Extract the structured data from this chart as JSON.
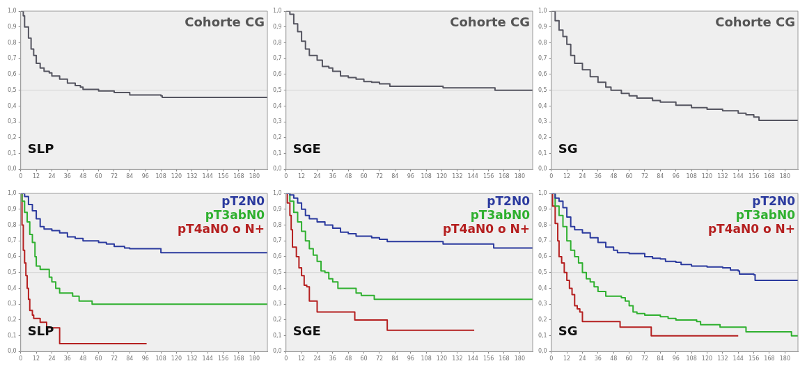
{
  "chart_data": [
    {
      "type": "step",
      "title": "Cohorte CG",
      "annotations": [
        "SLP"
      ],
      "xlim": [
        0,
        190
      ],
      "xticks": [
        0,
        12,
        24,
        36,
        48,
        60,
        72,
        84,
        96,
        108,
        120,
        132,
        144,
        156,
        168,
        180
      ],
      "ylim": [
        0,
        1
      ],
      "yticks": [
        {
          "value": 0,
          "label": "0,0"
        },
        {
          "value": 0.1,
          "label": "0,1"
        },
        {
          "value": 0.2,
          "label": "0,2"
        },
        {
          "value": 0.3,
          "label": "0,3"
        },
        {
          "value": 0.4,
          "label": "0,4"
        },
        {
          "value": 0.5,
          "label": "0,5"
        },
        {
          "value": 0.6,
          "label": "0,6"
        },
        {
          "value": 0.7,
          "label": "0,7"
        },
        {
          "value": 0.8,
          "label": "0,8"
        },
        {
          "value": 0.9,
          "label": "0,9"
        },
        {
          "value": 1,
          "label": "1,0"
        }
      ],
      "ref_lines": [
        {
          "axis": "y",
          "value": 0.5,
          "color": "#d4d4d4"
        }
      ],
      "legend": false,
      "series": [
        {
          "color": "#555560",
          "x": [
            0,
            2,
            3,
            6,
            8,
            10,
            12,
            15,
            18,
            22,
            24,
            30,
            36,
            42,
            46,
            48,
            60,
            72,
            84,
            108,
            109,
            190
          ],
          "values": [
            1,
            0.97,
            0.9,
            0.83,
            0.76,
            0.72,
            0.67,
            0.64,
            0.62,
            0.61,
            0.59,
            0.57,
            0.545,
            0.53,
            0.52,
            0.505,
            0.495,
            0.485,
            0.47,
            0.465,
            0.455,
            0.455
          ]
        }
      ]
    },
    {
      "type": "step",
      "title": "Cohorte CG",
      "annotations": [
        "SGE"
      ],
      "xlim": [
        0,
        190
      ],
      "xticks": [
        0,
        12,
        24,
        36,
        48,
        60,
        72,
        84,
        96,
        108,
        120,
        132,
        144,
        156,
        168,
        180
      ],
      "ylim": [
        0,
        1
      ],
      "yticks": [
        {
          "value": 0,
          "label": "0,0"
        },
        {
          "value": 0.1,
          "label": "0,1"
        },
        {
          "value": 0.2,
          "label": "0,2"
        },
        {
          "value": 0.3,
          "label": "0,3"
        },
        {
          "value": 0.4,
          "label": "0,4"
        },
        {
          "value": 0.5,
          "label": "0,5"
        },
        {
          "value": 0.6,
          "label": "0,6"
        },
        {
          "value": 0.7,
          "label": "0,7"
        },
        {
          "value": 0.8,
          "label": "0,8"
        },
        {
          "value": 0.9,
          "label": "0,9"
        },
        {
          "value": 1,
          "label": "1,0"
        }
      ],
      "ref_lines": [
        {
          "axis": "y",
          "value": 0.5,
          "color": "#d4d4d4"
        }
      ],
      "legend": false,
      "series": [
        {
          "color": "#555560",
          "x": [
            0,
            3,
            6,
            9,
            12,
            15,
            18,
            24,
            28,
            33,
            36,
            42,
            48,
            54,
            60,
            66,
            72,
            80,
            120,
            121,
            160,
            161,
            190
          ],
          "values": [
            1,
            0.98,
            0.92,
            0.87,
            0.81,
            0.76,
            0.72,
            0.69,
            0.65,
            0.64,
            0.62,
            0.59,
            0.58,
            0.57,
            0.555,
            0.55,
            0.54,
            0.525,
            0.525,
            0.515,
            0.515,
            0.5,
            0.5
          ]
        }
      ]
    },
    {
      "type": "step",
      "title": "Cohorte CG",
      "annotations": [
        "SG"
      ],
      "xlim": [
        0,
        190
      ],
      "xticks": [
        0,
        12,
        24,
        36,
        48,
        60,
        72,
        84,
        96,
        108,
        120,
        132,
        144,
        156,
        168,
        180
      ],
      "ylim": [
        0,
        1
      ],
      "yticks": [
        {
          "value": 0,
          "label": "0,0"
        },
        {
          "value": 0.1,
          "label": "0,1"
        },
        {
          "value": 0.2,
          "label": "0,2"
        },
        {
          "value": 0.3,
          "label": "0,3"
        },
        {
          "value": 0.4,
          "label": "0,4"
        },
        {
          "value": 0.5,
          "label": "0,5"
        },
        {
          "value": 0.6,
          "label": "0,6"
        },
        {
          "value": 0.7,
          "label": "0,7"
        },
        {
          "value": 0.8,
          "label": "0,8"
        },
        {
          "value": 0.9,
          "label": "0,9"
        },
        {
          "value": 1,
          "label": "1,0"
        }
      ],
      "ref_lines": [
        {
          "axis": "y",
          "value": 0.5,
          "color": "#d4d4d4"
        }
      ],
      "legend": false,
      "series": [
        {
          "color": "#555560",
          "x": [
            0,
            3,
            6,
            9,
            12,
            15,
            18,
            24,
            30,
            36,
            42,
            46,
            54,
            60,
            66,
            78,
            84,
            96,
            108,
            120,
            132,
            144,
            150,
            156,
            160,
            190
          ],
          "values": [
            1,
            0.94,
            0.88,
            0.84,
            0.79,
            0.72,
            0.67,
            0.63,
            0.585,
            0.55,
            0.52,
            0.5,
            0.48,
            0.465,
            0.45,
            0.435,
            0.425,
            0.405,
            0.39,
            0.38,
            0.37,
            0.355,
            0.345,
            0.33,
            0.31,
            0.31
          ]
        }
      ]
    },
    {
      "type": "step",
      "annotations": [
        "SLP"
      ],
      "xlim": [
        0,
        190
      ],
      "xticks": [
        0,
        12,
        24,
        36,
        48,
        60,
        72,
        84,
        96,
        108,
        120,
        132,
        144,
        156,
        168,
        180
      ],
      "ylim": [
        0,
        1
      ],
      "yticks": [
        {
          "value": 0,
          "label": "0,0"
        },
        {
          "value": 0.1,
          "label": "0,1"
        },
        {
          "value": 0.2,
          "label": "0,2"
        },
        {
          "value": 0.3,
          "label": "0,3"
        },
        {
          "value": 0.4,
          "label": "0,4"
        },
        {
          "value": 0.5,
          "label": "0,5"
        },
        {
          "value": 0.6,
          "label": "0,6"
        },
        {
          "value": 0.7,
          "label": "0,7"
        },
        {
          "value": 0.8,
          "label": "0,8"
        },
        {
          "value": 0.9,
          "label": "0,9"
        },
        {
          "value": 1,
          "label": "1,0"
        }
      ],
      "ref_lines": [
        {
          "axis": "y",
          "value": 0.5,
          "color": "#d4d4d4"
        }
      ],
      "legend": "top right",
      "series": [
        {
          "name": "pT2N0",
          "color": "#2b3a9e",
          "x": [
            0,
            3,
            6,
            9,
            12,
            15,
            18,
            24,
            30,
            36,
            42,
            48,
            60,
            66,
            72,
            80,
            84,
            104,
            108,
            190
          ],
          "values": [
            1,
            0.98,
            0.93,
            0.89,
            0.84,
            0.79,
            0.775,
            0.765,
            0.75,
            0.725,
            0.715,
            0.7,
            0.69,
            0.68,
            0.665,
            0.655,
            0.65,
            0.65,
            0.625,
            0.625
          ]
        },
        {
          "name": "pT3abN0",
          "color": "#2fb02f",
          "x": [
            0,
            1,
            3,
            5,
            7,
            9,
            11,
            12,
            15,
            21,
            22,
            24,
            27,
            30,
            36,
            40,
            45,
            55,
            190
          ],
          "values": [
            1,
            0.95,
            0.88,
            0.82,
            0.74,
            0.69,
            0.6,
            0.54,
            0.52,
            0.52,
            0.47,
            0.44,
            0.4,
            0.37,
            0.37,
            0.35,
            0.32,
            0.3,
            0.3
          ]
        },
        {
          "name": "pT4aN0 o N+",
          "color": "#b52020",
          "x": [
            0,
            1,
            2,
            3,
            4,
            5,
            6,
            7,
            9,
            10,
            15,
            20,
            24,
            30,
            97
          ],
          "values": [
            1,
            0.8,
            0.64,
            0.56,
            0.48,
            0.4,
            0.33,
            0.26,
            0.23,
            0.21,
            0.185,
            0.15,
            0.15,
            0.05,
            0.05
          ]
        }
      ]
    },
    {
      "type": "step",
      "annotations": [
        "SGE"
      ],
      "xlim": [
        0,
        190
      ],
      "xticks": [
        0,
        12,
        24,
        36,
        48,
        60,
        72,
        84,
        96,
        108,
        120,
        132,
        144,
        156,
        168,
        180
      ],
      "ylim": [
        0,
        1
      ],
      "yticks": [
        {
          "value": 0,
          "label": "0,0"
        },
        {
          "value": 0.1,
          "label": "0,1"
        },
        {
          "value": 0.2,
          "label": "0,2"
        },
        {
          "value": 0.3,
          "label": "0,3"
        },
        {
          "value": 0.4,
          "label": "0,4"
        },
        {
          "value": 0.5,
          "label": "0,5"
        },
        {
          "value": 0.6,
          "label": "0,6"
        },
        {
          "value": 0.7,
          "label": "0,7"
        },
        {
          "value": 0.8,
          "label": "0,8"
        },
        {
          "value": 0.9,
          "label": "0,9"
        },
        {
          "value": 1,
          "label": "1,0"
        }
      ],
      "ref_lines": [
        {
          "axis": "y",
          "value": 0.5,
          "color": "#d4d4d4"
        }
      ],
      "legend": "top right",
      "series": [
        {
          "name": "pT2N0",
          "color": "#2b3a9e",
          "x": [
            0,
            3,
            6,
            9,
            12,
            15,
            18,
            24,
            30,
            36,
            42,
            48,
            54,
            66,
            72,
            78,
            120,
            121,
            159,
            160,
            190
          ],
          "values": [
            1,
            0.99,
            0.97,
            0.94,
            0.9,
            0.86,
            0.84,
            0.82,
            0.8,
            0.78,
            0.755,
            0.745,
            0.73,
            0.72,
            0.71,
            0.695,
            0.695,
            0.68,
            0.68,
            0.655,
            0.655
          ]
        },
        {
          "name": "pT3abN0",
          "color": "#2fb02f",
          "x": [
            0,
            3,
            6,
            9,
            12,
            15,
            18,
            21,
            24,
            27,
            30,
            33,
            36,
            40,
            50,
            54,
            58,
            68,
            190
          ],
          "values": [
            1,
            0.95,
            0.88,
            0.82,
            0.76,
            0.7,
            0.65,
            0.61,
            0.57,
            0.51,
            0.5,
            0.46,
            0.44,
            0.4,
            0.4,
            0.37,
            0.355,
            0.33,
            0.33
          ]
        },
        {
          "name": "pT4aN0 o N+",
          "color": "#b52020",
          "x": [
            0,
            1,
            3,
            4,
            5,
            8,
            10,
            12,
            14,
            16,
            18,
            22,
            24,
            52,
            53,
            77,
            78,
            145
          ],
          "values": [
            1,
            0.94,
            0.86,
            0.77,
            0.66,
            0.6,
            0.53,
            0.48,
            0.42,
            0.41,
            0.32,
            0.32,
            0.25,
            0.25,
            0.2,
            0.2,
            0.135,
            0.135
          ]
        }
      ]
    },
    {
      "type": "step",
      "annotations": [
        "SG"
      ],
      "xlim": [
        0,
        190
      ],
      "xticks": [
        0,
        12,
        24,
        36,
        48,
        60,
        72,
        84,
        96,
        108,
        120,
        132,
        144,
        156,
        168,
        180
      ],
      "ylim": [
        0,
        1
      ],
      "yticks": [
        {
          "value": 0,
          "label": "0,0"
        },
        {
          "value": 0.1,
          "label": "0,1"
        },
        {
          "value": 0.2,
          "label": "0,2"
        },
        {
          "value": 0.3,
          "label": "0,3"
        },
        {
          "value": 0.4,
          "label": "0,4"
        },
        {
          "value": 0.5,
          "label": "0,5"
        },
        {
          "value": 0.6,
          "label": "0,6"
        },
        {
          "value": 0.7,
          "label": "0,7"
        },
        {
          "value": 0.8,
          "label": "0,8"
        },
        {
          "value": 0.9,
          "label": "0,9"
        },
        {
          "value": 1,
          "label": "1,0"
        }
      ],
      "ref_lines": [
        {
          "axis": "y",
          "value": 0.5,
          "color": "#d4d4d4"
        }
      ],
      "legend": "top right",
      "series": [
        {
          "name": "pT2N0",
          "color": "#2b3a9e",
          "x": [
            0,
            3,
            6,
            9,
            12,
            15,
            18,
            24,
            30,
            36,
            42,
            48,
            51,
            60,
            72,
            78,
            84,
            88,
            96,
            100,
            108,
            120,
            132,
            138,
            144,
            145,
            156,
            157,
            190
          ],
          "values": [
            1,
            0.97,
            0.95,
            0.91,
            0.85,
            0.79,
            0.77,
            0.75,
            0.72,
            0.69,
            0.66,
            0.64,
            0.625,
            0.62,
            0.6,
            0.59,
            0.585,
            0.57,
            0.565,
            0.55,
            0.54,
            0.535,
            0.53,
            0.515,
            0.51,
            0.49,
            0.485,
            0.45,
            0.45
          ]
        },
        {
          "name": "pT3abN0",
          "color": "#2fb02f",
          "x": [
            0,
            3,
            6,
            9,
            12,
            15,
            18,
            21,
            24,
            27,
            30,
            33,
            36,
            42,
            54,
            57,
            60,
            63,
            66,
            72,
            84,
            90,
            96,
            112,
            115,
            130,
            150,
            180,
            185,
            190
          ],
          "values": [
            1,
            0.92,
            0.86,
            0.79,
            0.7,
            0.64,
            0.6,
            0.56,
            0.5,
            0.46,
            0.44,
            0.41,
            0.38,
            0.35,
            0.34,
            0.32,
            0.29,
            0.25,
            0.24,
            0.23,
            0.22,
            0.21,
            0.2,
            0.19,
            0.17,
            0.155,
            0.125,
            0.125,
            0.1,
            0.1
          ]
        },
        {
          "name": "pT4aN0 o N+",
          "color": "#b52020",
          "x": [
            0,
            1,
            3,
            5,
            6,
            8,
            10,
            12,
            14,
            16,
            18,
            20,
            22,
            24,
            52,
            53,
            76,
            77,
            144
          ],
          "values": [
            1,
            0.92,
            0.81,
            0.7,
            0.6,
            0.56,
            0.5,
            0.45,
            0.4,
            0.36,
            0.29,
            0.27,
            0.25,
            0.19,
            0.19,
            0.155,
            0.155,
            0.1,
            0.1
          ]
        }
      ]
    }
  ]
}
